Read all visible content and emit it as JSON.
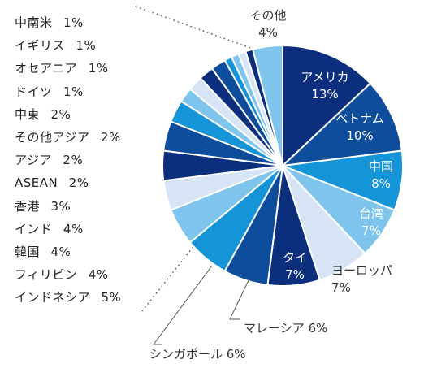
{
  "chart_data": {
    "type": "pie",
    "title": "",
    "unit": "%",
    "slices": [
      {
        "label": "アメリカ",
        "value": 13,
        "color": "#0b2e7d",
        "text_color": "#ffffff"
      },
      {
        "label": "ベトナム",
        "value": 10,
        "color": "#0e4c9c",
        "text_color": "#ffffff"
      },
      {
        "label": "中国",
        "value": 8,
        "color": "#1694d8",
        "text_color": "#ffffff"
      },
      {
        "label": "台湾",
        "value": 7,
        "color": "#7ec4ec",
        "text_color": "#ffffff"
      },
      {
        "label": "ヨーロッパ",
        "value": 7,
        "color": "#d6e4f5",
        "text_color": "#333333"
      },
      {
        "label": "タイ",
        "value": 7,
        "color": "#0b2e7d",
        "text_color": "#ffffff"
      },
      {
        "label": "マレーシア",
        "value": 6,
        "color": "#0e4c9c",
        "text_color": "#333333"
      },
      {
        "label": "シンガポール",
        "value": 6,
        "color": "#1694d8",
        "text_color": "#333333"
      },
      {
        "label": "インドネシア",
        "value": 5,
        "color": "#7ec4ec",
        "text_color": "#333333"
      },
      {
        "label": "フィリピン",
        "value": 4,
        "color": "#d6e4f5",
        "text_color": "#333333"
      },
      {
        "label": "韓国",
        "value": 4,
        "color": "#0b2e7d",
        "text_color": "#333333"
      },
      {
        "label": "インド",
        "value": 4,
        "color": "#0e4c9c",
        "text_color": "#333333"
      },
      {
        "label": "香港",
        "value": 3,
        "color": "#1694d8",
        "text_color": "#333333"
      },
      {
        "label": "ASEAN",
        "value": 2,
        "color": "#7ec4ec",
        "text_color": "#333333"
      },
      {
        "label": "アジア",
        "value": 2,
        "color": "#d6e4f5",
        "text_color": "#333333"
      },
      {
        "label": "その他アジア",
        "value": 2,
        "color": "#0b2e7d",
        "text_color": "#333333"
      },
      {
        "label": "中東",
        "value": 2,
        "color": "#0e4c9c",
        "text_color": "#333333"
      },
      {
        "label": "ドイツ",
        "value": 1,
        "color": "#1694d8",
        "text_color": "#333333"
      },
      {
        "label": "オセアニア",
        "value": 1,
        "color": "#7ec4ec",
        "text_color": "#333333"
      },
      {
        "label": "イギリス",
        "value": 1,
        "color": "#d6e4f5",
        "text_color": "#333333"
      },
      {
        "label": "中南米",
        "value": 1,
        "color": "#0b2e7d",
        "text_color": "#333333"
      },
      {
        "label": "その他",
        "value": 4,
        "color": "#7ec4ec",
        "text_color": "#333333"
      }
    ],
    "legend_list": [
      {
        "label": "中南米",
        "pct": "1%"
      },
      {
        "label": "イギリス",
        "pct": "1%"
      },
      {
        "label": "オセアニア",
        "pct": "1%"
      },
      {
        "label": "ドイツ",
        "pct": "1%"
      },
      {
        "label": "中東",
        "pct": "2%"
      },
      {
        "label": "その他アジア",
        "pct": "2%"
      },
      {
        "label": "アジア",
        "pct": "2%"
      },
      {
        "label": "ASEAN",
        "pct": "2%"
      },
      {
        "label": "香港",
        "pct": "3%"
      },
      {
        "label": "インド",
        "pct": "4%"
      },
      {
        "label": "韓国",
        "pct": "4%"
      },
      {
        "label": "フィリピン",
        "pct": "4%"
      },
      {
        "label": "インドネシア",
        "pct": "5%"
      }
    ],
    "legend_placement": "left"
  }
}
